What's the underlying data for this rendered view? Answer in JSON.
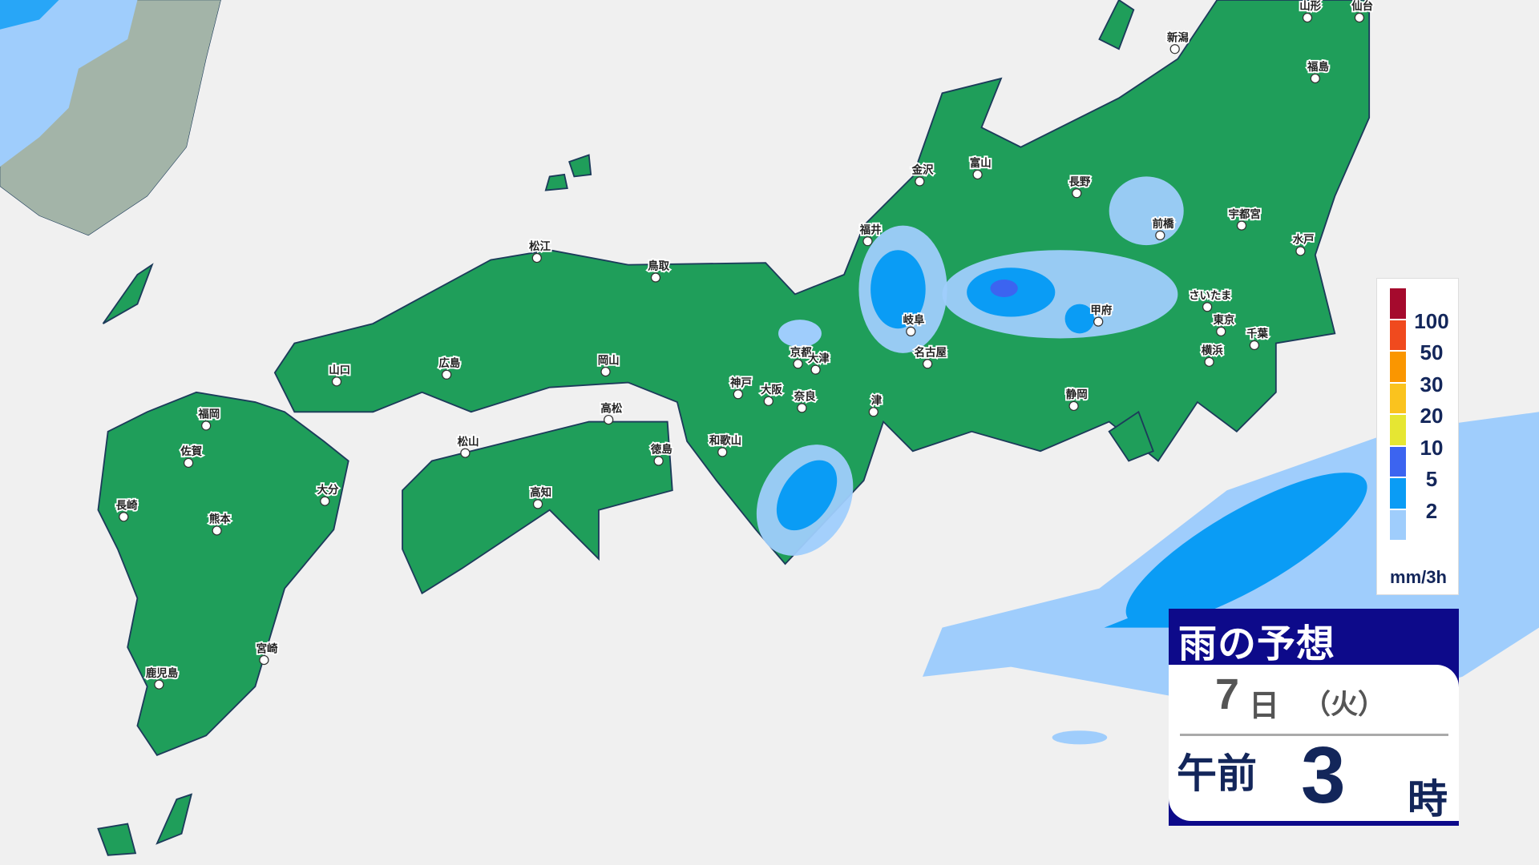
{
  "colors": {
    "land": "#1f9e5a",
    "coast": "#1c3b5a",
    "sea": "#f0f0f0",
    "foreign_land": "#a3b4a8",
    "rain_light": "#9fcdfc",
    "rain_mid": "#0a9cf5",
    "rain_heavy": "#3c64f0",
    "title_bg": "#0d0a8a"
  },
  "cities": [
    "山形",
    "仙台",
    "新潟",
    "福島",
    "金沢",
    "富山",
    "長野",
    "前橋",
    "宇都宮",
    "水戸",
    "福井",
    "岐阜",
    "甲府",
    "さいたま",
    "東京",
    "千葉",
    "横浜",
    "名古屋",
    "静岡",
    "津",
    "京都",
    "大津",
    "大阪",
    "奈良",
    "神戸",
    "和歌山",
    "鳥取",
    "松江",
    "岡山",
    "広島",
    "山口",
    "高松",
    "徳島",
    "松山",
    "高知",
    "福岡",
    "佐賀",
    "長崎",
    "熊本",
    "大分",
    "宮崎",
    "鹿児島"
  ],
  "legend": {
    "levels": [
      {
        "label": "100",
        "color": "#a50a2d"
      },
      {
        "label": "50",
        "color": "#f04a1e"
      },
      {
        "label": "30",
        "color": "#fa9600"
      },
      {
        "label": "20",
        "color": "#fac31e"
      },
      {
        "label": "10",
        "color": "#e6e632"
      },
      {
        "label": "5",
        "color": "#3c64f0"
      },
      {
        "label": "2",
        "color": "#0a9cf5"
      },
      {
        "label": "",
        "color": "#9fcdfc"
      }
    ],
    "unit": "mm/3h"
  },
  "title": {
    "text": "雨の予想",
    "day": "7",
    "day_unit": "日",
    "weekday": "（火）",
    "ampm": "午前",
    "hour": "3",
    "hour_unit": "時"
  }
}
